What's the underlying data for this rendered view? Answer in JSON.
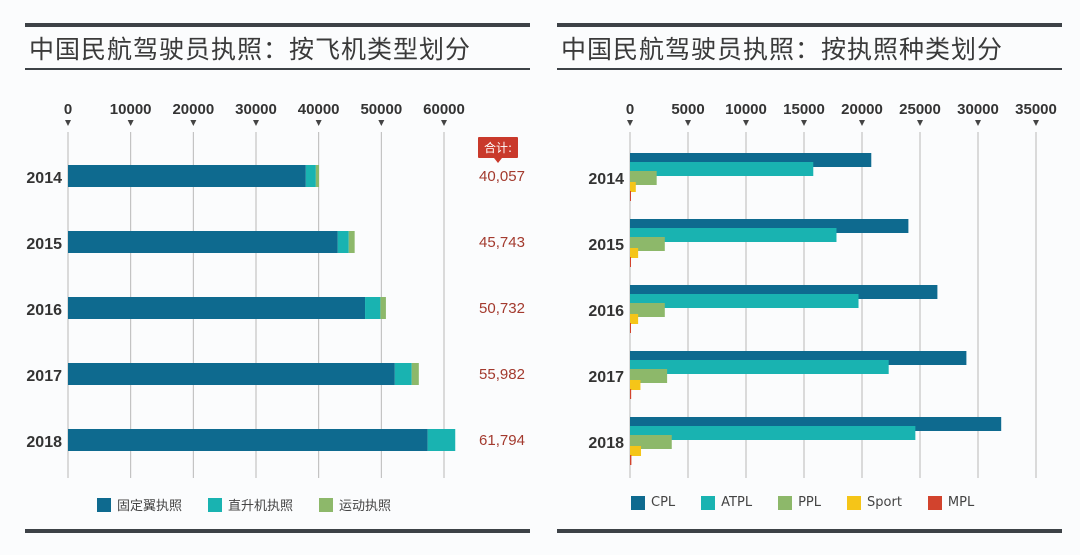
{
  "chart_data": [
    {
      "type": "bar",
      "orientation": "horizontal",
      "stacked": true,
      "title": "中国民航驾驶员执照：按飞机类型划分",
      "categories": [
        "2014",
        "2015",
        "2016",
        "2017",
        "2018"
      ],
      "xticks": [
        "0",
        "10000",
        "20000",
        "30000",
        "40000",
        "50000",
        "60000"
      ],
      "xlim": [
        0,
        60000
      ],
      "grid": true,
      "series": [
        {
          "name": "固定翼执照",
          "color": "#0e6a8f",
          "values": [
            37950,
            43050,
            47400,
            52150,
            57400
          ]
        },
        {
          "name": "直升机执照",
          "color": "#19b3b1",
          "values": [
            1600,
            1750,
            2450,
            2700,
            4394
          ]
        },
        {
          "name": "运动执照",
          "color": "#8db86a",
          "values": [
            507,
            943,
            882,
            1132,
            0
          ]
        }
      ],
      "totals_badge": "合计:",
      "totals": [
        "40,057",
        "45,743",
        "50,732",
        "55,982",
        "61,794"
      ],
      "legend_position": "bottom"
    },
    {
      "type": "bar",
      "orientation": "horizontal",
      "stacked": false,
      "title": "中国民航驾驶员执照：按执照种类划分",
      "categories": [
        "2014",
        "2015",
        "2016",
        "2017",
        "2018"
      ],
      "xticks": [
        "0",
        "5000",
        "10000",
        "15000",
        "20000",
        "25000",
        "30000",
        "35000"
      ],
      "xlim": [
        0,
        35000
      ],
      "grid": true,
      "series": [
        {
          "name": "CPL",
          "color": "#0e6a8f",
          "values": [
            20800,
            24000,
            26500,
            29000,
            32000
          ]
        },
        {
          "name": "ATPL",
          "color": "#19b3b1",
          "values": [
            15800,
            17800,
            19700,
            22300,
            24600
          ]
        },
        {
          "name": "PPL",
          "color": "#8db86a",
          "values": [
            2300,
            3000,
            3000,
            3200,
            3600
          ]
        },
        {
          "name": "Sport",
          "color": "#f5c518",
          "values": [
            500,
            700,
            700,
            900,
            950
          ]
        },
        {
          "name": "MPL",
          "color": "#d2432d",
          "values": [
            50,
            60,
            80,
            100,
            120
          ]
        }
      ],
      "legend_position": "bottom"
    }
  ]
}
